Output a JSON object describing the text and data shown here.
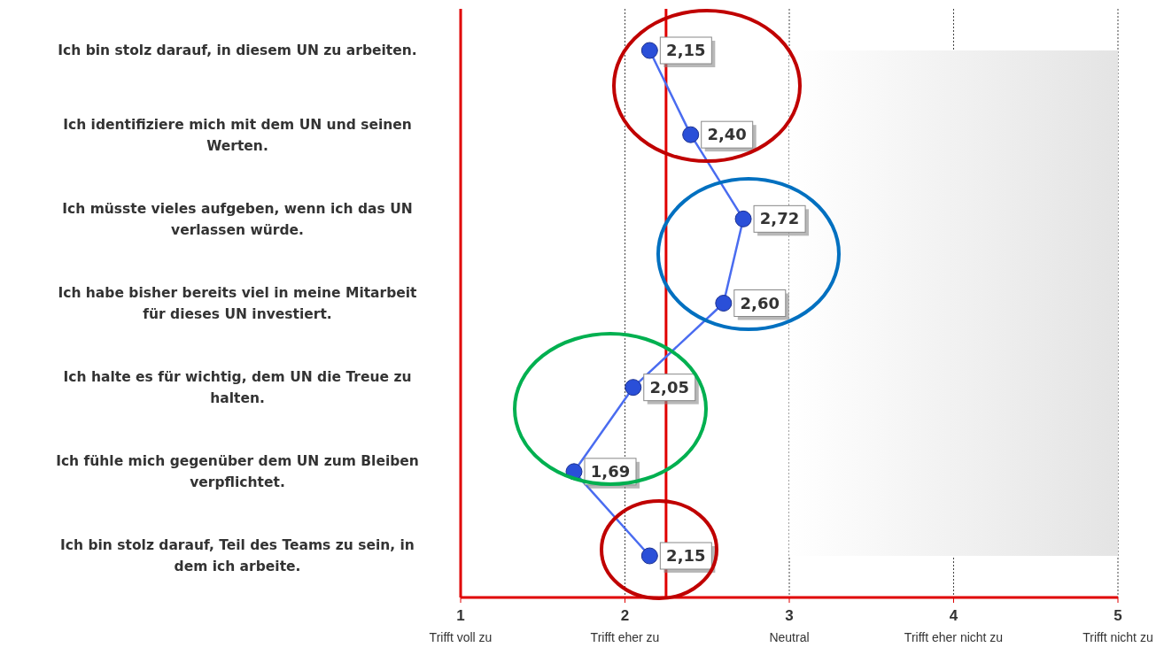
{
  "chart_data": {
    "type": "line",
    "orientation": "horizontal",
    "categories": [
      "Ich bin stolz darauf, in diesem UN zu arbeiten.",
      "Ich identifiziere mich mit dem UN und seinen Werten.",
      "Ich müsste vieles aufgeben, wenn ich das UN verlassen würde.",
      "Ich habe bisher bereits viel in meine Mitarbeit für dieses UN investiert.",
      "Ich halte es für wichtig, dem UN die Treue zu halten.",
      "Ich fühle mich gegenüber dem UN zum Bleiben verpflichtet.",
      "Ich bin stolz darauf, Teil des Teams zu sein, in dem ich arbeite."
    ],
    "series": [
      {
        "color": "#4a6cf0",
        "values": [
          2.15,
          2.4,
          2.72,
          2.6,
          2.05,
          1.69,
          2.15
        ],
        "value_labels": [
          "2,15",
          "2,40",
          "2,72",
          "2,60",
          "2,05",
          "1,69",
          "2,15"
        ]
      }
    ],
    "xlim": [
      1,
      5
    ],
    "xticks": [
      {
        "value": 1,
        "label": "1\nTrifft voll zu"
      },
      {
        "value": 2,
        "label": "2\nTrifft eher zu"
      },
      {
        "value": 3,
        "label": "3\nNeutral"
      },
      {
        "value": 4,
        "label": "4\nTrifft eher nicht zu"
      },
      {
        "value": 5,
        "label": "5\nTrifft nicht zu"
      }
    ],
    "ref_lines": [
      {
        "axis": "x",
        "value": 2.25,
        "color": "#e00000"
      }
    ],
    "bands": [
      {
        "axis": "x",
        "from": 3,
        "to": 5,
        "color": "#e4e4e4"
      }
    ],
    "grid": "x",
    "marker": "circle",
    "line_style": "solid",
    "legend": false
  }
}
